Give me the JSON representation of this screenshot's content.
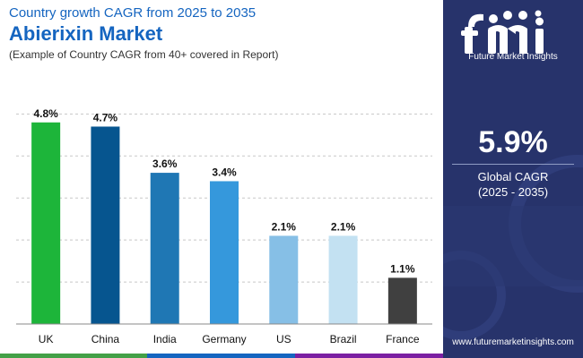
{
  "header": {
    "subtitle": "Country growth CAGR from 2025 to 2035",
    "title": "Abierixin Market",
    "note": "(Example of Country CAGR from 40+ covered in Report)"
  },
  "chart_data": {
    "type": "bar",
    "title": "Abierixin Market",
    "subtitle": "Country growth CAGR from 2025 to 2035",
    "categories": [
      "UK",
      "China",
      "India",
      "Germany",
      "US",
      "Brazil",
      "France"
    ],
    "values": [
      4.8,
      4.7,
      3.6,
      3.4,
      2.1,
      2.1,
      1.1
    ],
    "value_labels": [
      "4.8%",
      "4.7%",
      "3.6%",
      "3.4%",
      "2.1%",
      "2.1%",
      "1.1%"
    ],
    "unit": "%",
    "colors": [
      "#1db53a",
      "#06558f",
      "#1f77b4",
      "#3598dc",
      "#86bfe6",
      "#c3e1f2",
      "#404040"
    ],
    "ylim": [
      0,
      5.2
    ],
    "grid": "dashed horizontal",
    "legend": "none"
  },
  "sidebar": {
    "brand": "Future Market Insights",
    "kpi_value": "5.9%",
    "kpi_label": "Global CAGR",
    "kpi_sub": "(2025 - 2035)",
    "website": "www.futuremarketinsights.com",
    "bg_color": "#27336b"
  },
  "bottom_strip_colors": [
    "#43a047",
    "#1565c0",
    "#7b1fa2"
  ]
}
